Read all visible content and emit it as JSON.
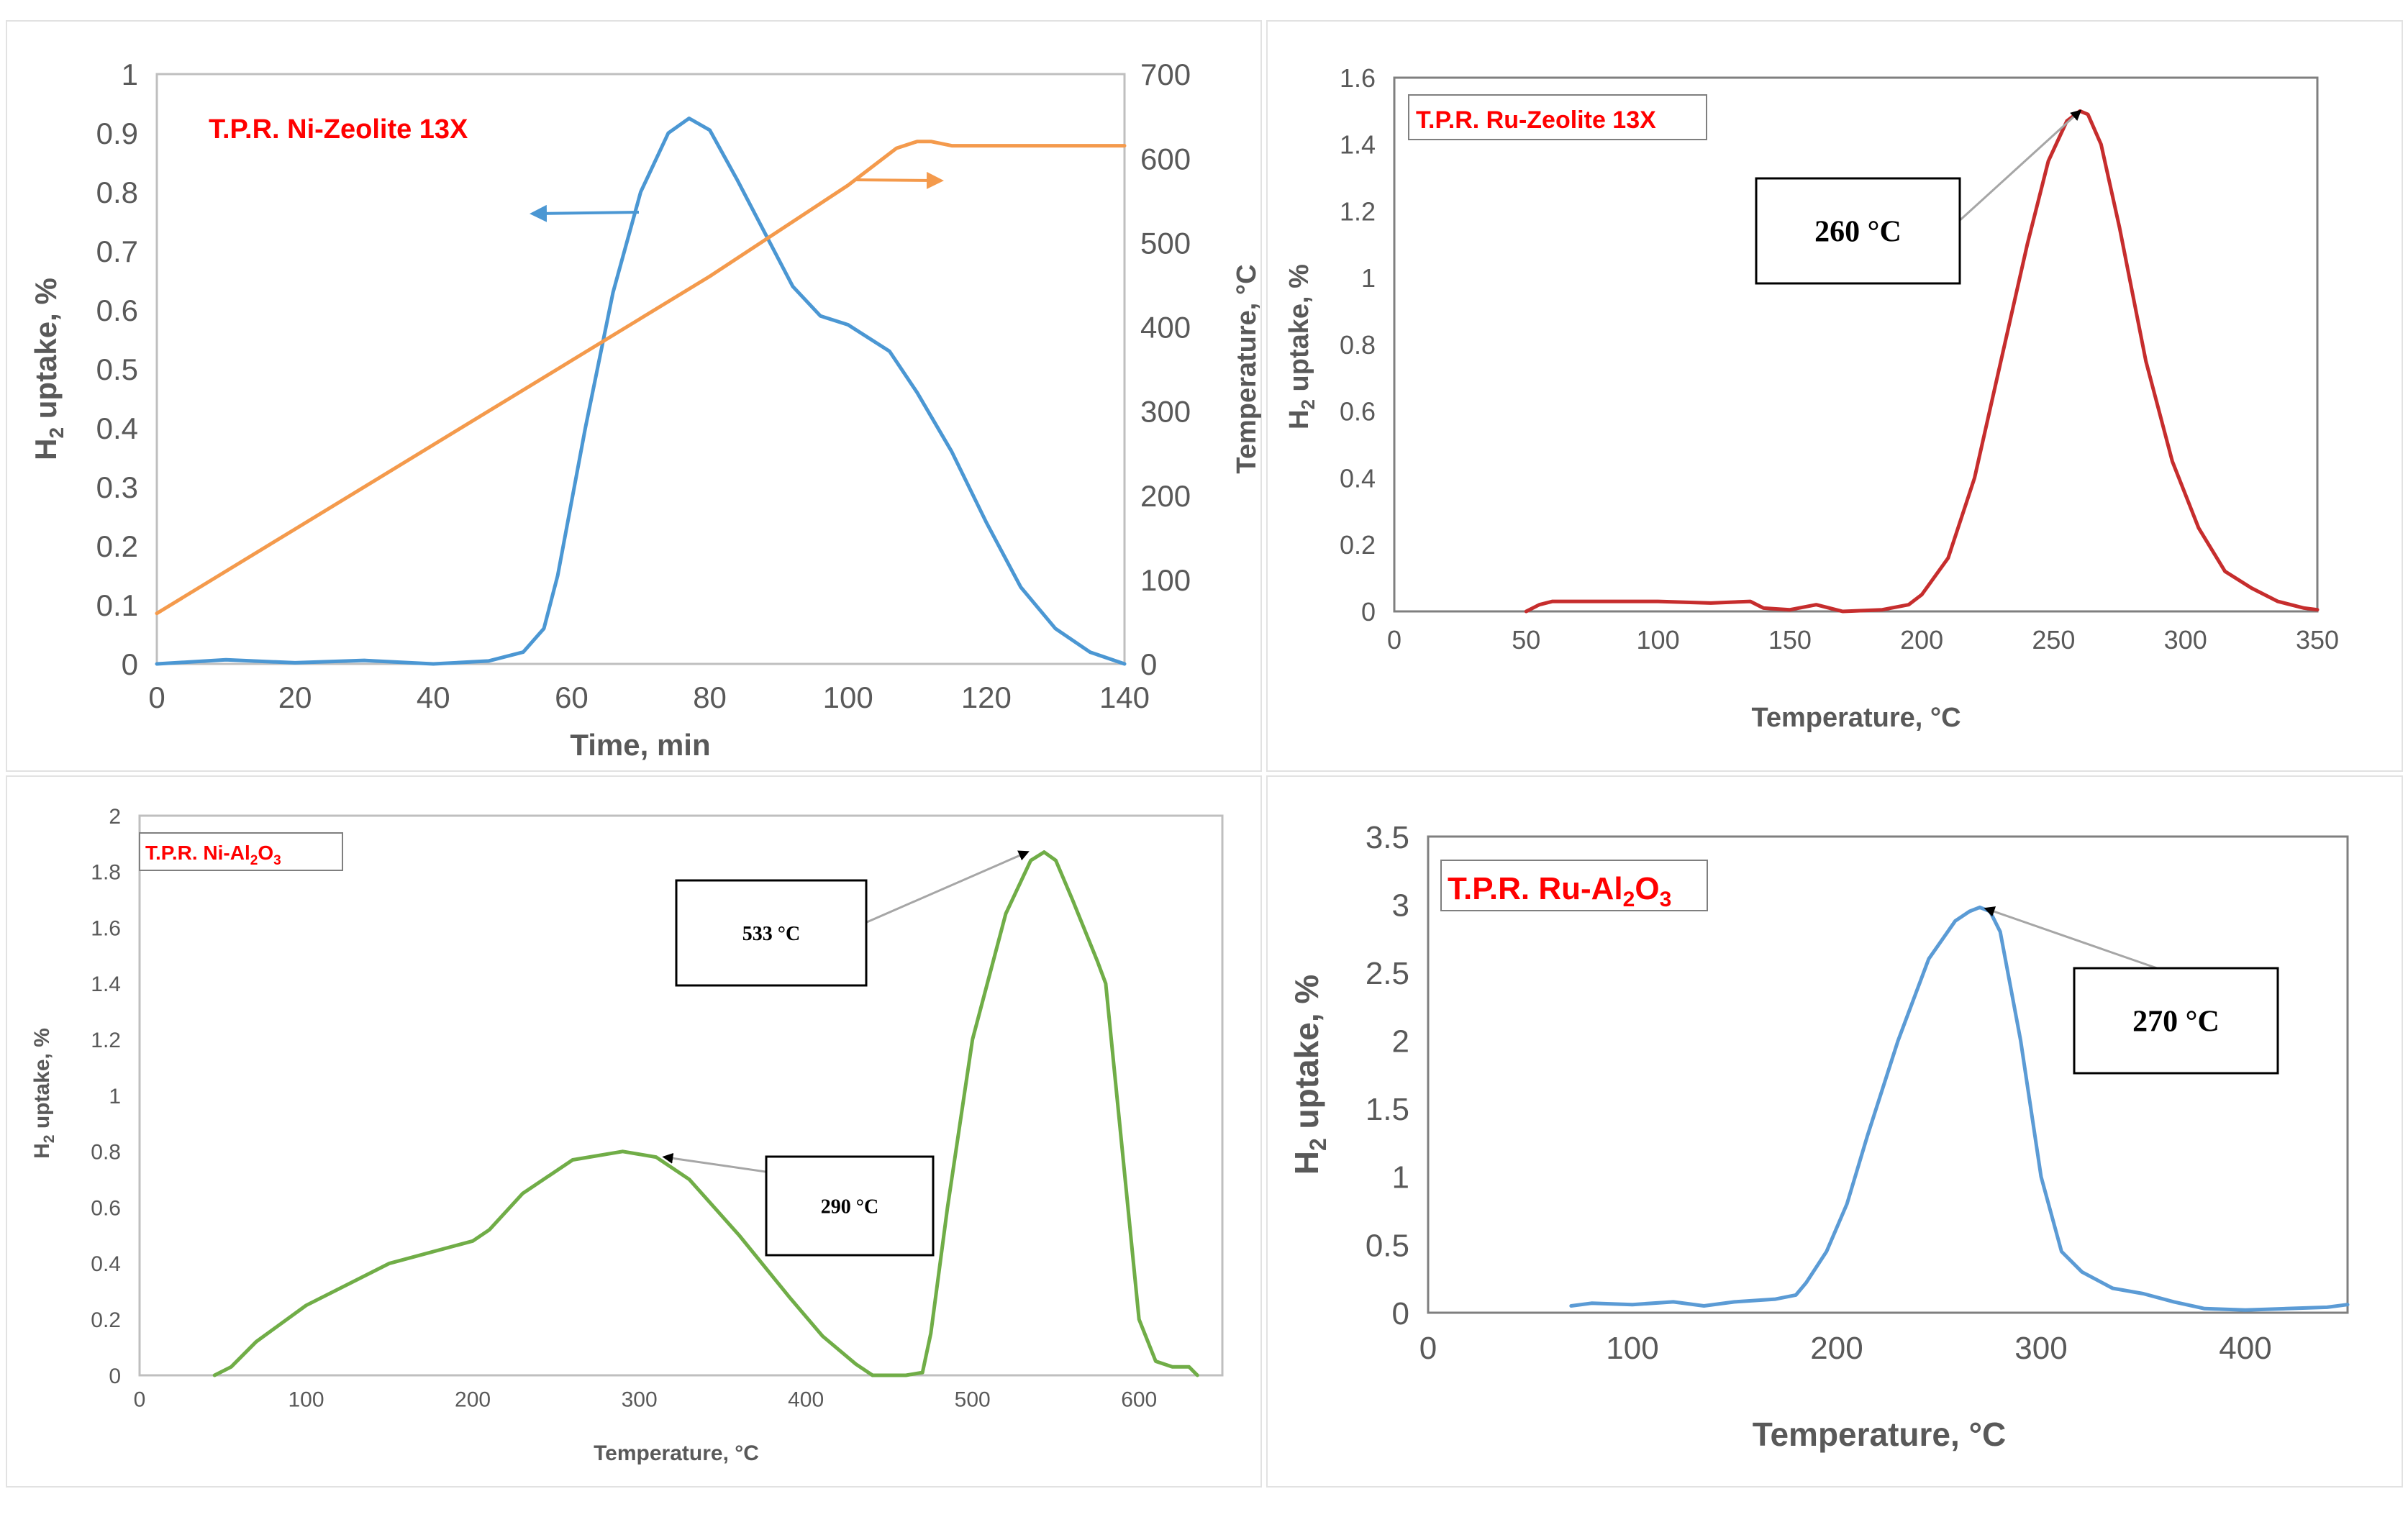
{
  "colors": {
    "ni_zeolite": "#4b97d3",
    "temperature": "#f49a4c",
    "ru_zeolite": "#c62d2d",
    "ni_al2o3": "#70ad47",
    "ru_al2o3": "#5b9bd5",
    "title": "#ff0000",
    "axis_text": "#595959"
  },
  "chart_data": [
    {
      "id": "ni_zeolite",
      "type": "line",
      "title": "T.P.R. Ni-Zeolite 13X",
      "xlabel": "Time, min",
      "ylabel": {
        "pre": "H",
        "sub": "2",
        "post": " uptake, %"
      },
      "y2label": "Temperature, °C",
      "xlim": [
        0,
        140
      ],
      "ylim": [
        0,
        1
      ],
      "y2lim": [
        0,
        700
      ],
      "xticks": [
        "0",
        "20",
        "40",
        "60",
        "80",
        "100",
        "120",
        "140"
      ],
      "yticks": [
        "0",
        "0.1",
        "0.2",
        "0.3",
        "0.4",
        "0.5",
        "0.6",
        "0.7",
        "0.8",
        "0.9",
        "1"
      ],
      "y2ticks": [
        "0",
        "100",
        "200",
        "300",
        "400",
        "500",
        "600",
        "700"
      ],
      "series": [
        {
          "name": "H2 uptake",
          "axis": "left",
          "color": "#4b97d3",
          "x": [
            0,
            10,
            20,
            30,
            40,
            48,
            53,
            56,
            58,
            62,
            66,
            70,
            74,
            77,
            80,
            84,
            88,
            92,
            96,
            100,
            106,
            110,
            115,
            120,
            125,
            130,
            135,
            140
          ],
          "y": [
            0,
            0.007,
            0.002,
            0.006,
            0,
            0.005,
            0.02,
            0.06,
            0.15,
            0.4,
            0.63,
            0.8,
            0.9,
            0.925,
            0.905,
            0.82,
            0.73,
            0.64,
            0.59,
            0.575,
            0.53,
            0.46,
            0.36,
            0.24,
            0.13,
            0.06,
            0.02,
            0
          ]
        },
        {
          "name": "Temperature",
          "axis": "right",
          "color": "#f49a4c",
          "x": [
            0,
            20,
            40,
            60,
            80,
            100,
            107,
            110,
            112,
            115,
            140
          ],
          "y": [
            60,
            160,
            260,
            360,
            460,
            568,
            612,
            620,
            620,
            615,
            615
          ]
        }
      ],
      "arrows": [
        {
          "series": "H2 uptake",
          "direction": "left"
        },
        {
          "series": "Temperature",
          "direction": "right"
        }
      ]
    },
    {
      "id": "ru_zeolite",
      "type": "line",
      "title": "T.P.R. Ru-Zeolite 13X",
      "xlabel": "Temperature, °C",
      "ylabel": {
        "pre": "H",
        "sub": "2",
        "post": " uptake, %"
      },
      "xlim": [
        0,
        350
      ],
      "ylim": [
        0,
        1.6
      ],
      "xticks": [
        "0",
        "50",
        "100",
        "150",
        "200",
        "250",
        "300",
        "350"
      ],
      "yticks": [
        "0",
        "0.2",
        "0.4",
        "0.6",
        "0.8",
        "1",
        "1.2",
        "1.4",
        "1.6"
      ],
      "series": [
        {
          "name": "H2 uptake",
          "color": "#c62d2d",
          "x": [
            50,
            55,
            60,
            80,
            100,
            120,
            135,
            140,
            150,
            160,
            170,
            185,
            195,
            200,
            210,
            220,
            230,
            240,
            248,
            255,
            260,
            263,
            268,
            275,
            285,
            295,
            305,
            315,
            325,
            335,
            345,
            350
          ],
          "y": [
            0,
            0.02,
            0.03,
            0.03,
            0.03,
            0.025,
            0.03,
            0.01,
            0.005,
            0.02,
            0,
            0.005,
            0.02,
            0.05,
            0.16,
            0.4,
            0.75,
            1.1,
            1.35,
            1.47,
            1.5,
            1.49,
            1.4,
            1.15,
            0.75,
            0.45,
            0.25,
            0.12,
            0.07,
            0.03,
            0.01,
            0.005
          ]
        }
      ],
      "annotations": [
        {
          "label": "260 °C",
          "x": 260,
          "y": 1.5
        }
      ]
    },
    {
      "id": "ni_al2o3",
      "type": "line",
      "title": {
        "pre": "T.P.R. Ni-Al",
        "sub1": "2",
        "mid": "O",
        "sub2": "3"
      },
      "xlabel": "Temperature, °C",
      "ylabel": {
        "pre": "H",
        "sub": "2",
        "post": " uptake, %"
      },
      "xlim": [
        0,
        650
      ],
      "ylim": [
        0,
        2
      ],
      "xticks": [
        "0",
        "100",
        "200",
        "300",
        "400",
        "500",
        "600"
      ],
      "yticks": [
        "0",
        "0.2",
        "0.4",
        "0.6",
        "0.8",
        "1",
        "1.2",
        "1.4",
        "1.6",
        "1.8",
        "2"
      ],
      "series": [
        {
          "name": "H2 uptake",
          "color": "#70ad47",
          "x": [
            45,
            55,
            70,
            100,
            150,
            200,
            210,
            230,
            260,
            290,
            310,
            330,
            360,
            390,
            410,
            430,
            440,
            460,
            470,
            475,
            485,
            500,
            520,
            535,
            543,
            550,
            560,
            575,
            580,
            590,
            600,
            610,
            620,
            630,
            635
          ],
          "y": [
            0,
            0.03,
            0.12,
            0.25,
            0.4,
            0.48,
            0.52,
            0.65,
            0.77,
            0.8,
            0.78,
            0.7,
            0.5,
            0.28,
            0.14,
            0.04,
            0,
            0,
            0.01,
            0.15,
            0.6,
            1.2,
            1.65,
            1.84,
            1.87,
            1.84,
            1.7,
            1.48,
            1.4,
            0.8,
            0.2,
            0.05,
            0.03,
            0.03,
            0
          ]
        }
      ],
      "annotations": [
        {
          "label": "533 °C",
          "x": 533,
          "y": 1.87
        },
        {
          "label": "290 °C",
          "x": 315,
          "y": 0.78
        }
      ]
    },
    {
      "id": "ru_al2o3",
      "type": "line",
      "title": {
        "pre": "T.P.R. Ru-Al",
        "sub1": "2",
        "mid": "O",
        "sub2": "3"
      },
      "xlabel": "Temperature, °C",
      "ylabel": {
        "pre": "H",
        "sub": "2",
        "post": " uptake, %"
      },
      "xlim": [
        0,
        450
      ],
      "ylim": [
        0,
        3.5
      ],
      "xticks": [
        "0",
        "100",
        "200",
        "300",
        "400"
      ],
      "yticks": [
        "0",
        "0.5",
        "1",
        "1.5",
        "2",
        "2.5",
        "3",
        "3.5"
      ],
      "series": [
        {
          "name": "H2 uptake",
          "color": "#5b9bd5",
          "x": [
            70,
            80,
            100,
            120,
            135,
            150,
            170,
            180,
            185,
            195,
            205,
            215,
            230,
            245,
            258,
            265,
            270,
            275,
            280,
            290,
            300,
            310,
            320,
            335,
            350,
            365,
            380,
            400,
            420,
            440,
            450
          ],
          "y": [
            0.05,
            0.07,
            0.06,
            0.08,
            0.05,
            0.08,
            0.1,
            0.13,
            0.22,
            0.45,
            0.8,
            1.3,
            2.0,
            2.6,
            2.88,
            2.95,
            2.98,
            2.95,
            2.8,
            2.0,
            1.0,
            0.45,
            0.3,
            0.18,
            0.14,
            0.08,
            0.03,
            0.02,
            0.03,
            0.04,
            0.06
          ]
        }
      ],
      "annotations": [
        {
          "label": "270 °C",
          "x": 273,
          "y": 2.97
        }
      ]
    }
  ]
}
